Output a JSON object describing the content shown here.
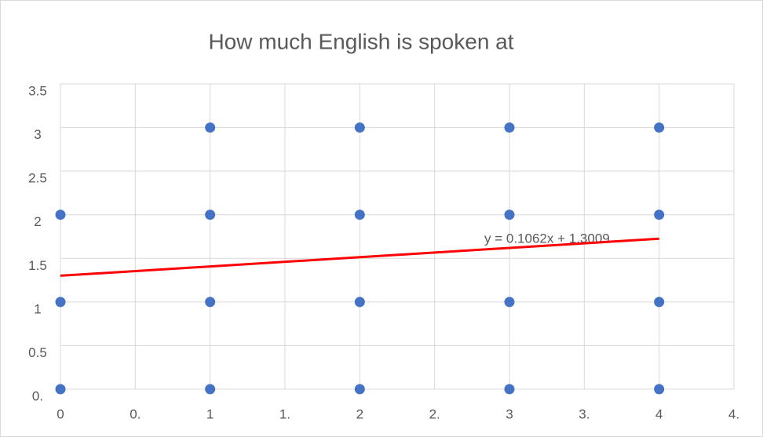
{
  "chart_data": {
    "type": "scatter",
    "title": "How much English is spoken at",
    "series": [
      {
        "color": "#4472c4",
        "x": [
          0,
          0,
          0,
          1,
          1,
          1,
          1,
          2,
          2,
          2,
          2,
          3,
          3,
          3,
          3,
          4,
          4,
          4,
          4
        ],
        "values": [
          2,
          1,
          0,
          3,
          2,
          1,
          0,
          3,
          2,
          1,
          0,
          3,
          2,
          1,
          0,
          3,
          2,
          1,
          0
        ]
      }
    ],
    "trendline": {
      "slope": 0.1062,
      "intercept": 1.3009,
      "color": "#ff0000",
      "label": "y = 0.1062x + 1.3009"
    },
    "xlim": [
      0,
      4.5
    ],
    "xticks": [
      0,
      {
        "value": 0.5,
        "label": "0."
      },
      1,
      {
        "value": 1.5,
        "label": "1."
      },
      2,
      {
        "value": 2.5,
        "label": "2."
      },
      3,
      {
        "value": 3.5,
        "label": "3."
      },
      4,
      {
        "value": 4.5,
        "label": "4."
      }
    ],
    "ylim": [
      0,
      3.5
    ],
    "yticks": [
      {
        "value": 0,
        "label": "0."
      },
      0.5,
      1,
      1.5,
      2,
      2.5,
      3,
      3.5
    ],
    "grid": true
  }
}
